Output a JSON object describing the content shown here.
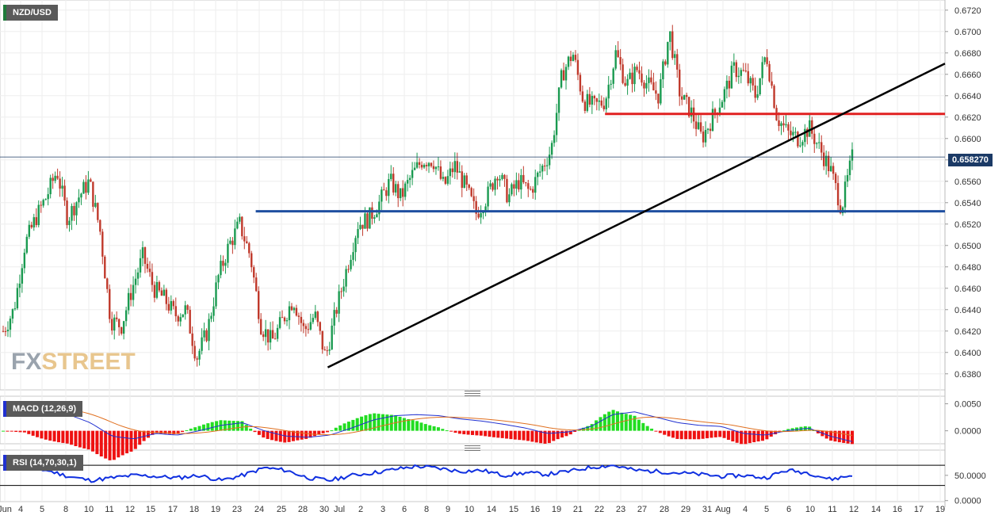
{
  "chart_data": [
    {
      "type": "candlestick",
      "symbol": "NZD/USD",
      "last_price_label": "0.658270",
      "last_price": 0.65827,
      "ylim": [
        0.6365,
        0.6728
      ],
      "yticks": [
        "0.6380",
        "0.6400",
        "0.6420",
        "0.6440",
        "0.6460",
        "0.6480",
        "0.6500",
        "0.6520",
        "0.6540",
        "0.6560",
        "0.6580",
        "0.6600",
        "0.6620",
        "0.6640",
        "0.6660",
        "0.6680",
        "0.6700",
        "0.6720"
      ],
      "xticks": [
        "Jun",
        "4",
        "5",
        "8",
        "10",
        "11",
        "12",
        "15",
        "17",
        "18",
        "19",
        "23",
        "24",
        "25",
        "28",
        "30",
        "Jul",
        "2",
        "3",
        "6",
        "8",
        "9",
        "10",
        "14",
        "15",
        "16",
        "19",
        "21",
        "22",
        "23",
        "27",
        "28",
        "29",
        "31",
        "Aug",
        "4",
        "5",
        "6",
        "10",
        "11",
        "12",
        "14",
        "16",
        "17",
        "19"
      ],
      "watermark": {
        "part1": "FX",
        "part2": "STREET"
      },
      "colors": {
        "up": "#1a9a50",
        "down": "#c0392b",
        "support": "#1f4fa0",
        "resistance": "#e02020",
        "trendline": "#000000"
      },
      "levels": [
        {
          "role": "support",
          "value": 0.6532,
          "from_day": 23.5,
          "to_day": 999
        },
        {
          "role": "resistance",
          "value": 0.6623,
          "from_day": 56,
          "to_day": 999
        }
      ],
      "trendline": {
        "start": [
          30.2,
          0.6386
        ],
        "end": [
          999,
          0.667
        ]
      },
      "anchors": [
        [
          0,
          0.642
        ],
        [
          1,
          0.644
        ],
        [
          2,
          0.65
        ],
        [
          3,
          0.6525
        ],
        [
          4,
          0.6545
        ],
        [
          5,
          0.657
        ],
        [
          6,
          0.6525
        ],
        [
          7,
          0.6545
        ],
        [
          8,
          0.656
        ],
        [
          9,
          0.6515
        ],
        [
          10,
          0.643
        ],
        [
          11,
          0.6425
        ],
        [
          12,
          0.646
        ],
        [
          13,
          0.649
        ],
        [
          14,
          0.646
        ],
        [
          15,
          0.645
        ],
        [
          16,
          0.6435
        ],
        [
          17,
          0.644
        ],
        [
          18,
          0.6395
        ],
        [
          19,
          0.642
        ],
        [
          20,
          0.647
        ],
        [
          21,
          0.65
        ],
        [
          22,
          0.652
        ],
        [
          23,
          0.649
        ],
        [
          24,
          0.6425
        ],
        [
          25,
          0.641
        ],
        [
          26,
          0.643
        ],
        [
          27,
          0.645
        ],
        [
          28,
          0.642
        ],
        [
          29,
          0.6435
        ],
        [
          30,
          0.6395
        ],
        [
          31,
          0.644
        ],
        [
          32,
          0.648
        ],
        [
          33,
          0.652
        ],
        [
          34,
          0.6525
        ],
        [
          35,
          0.654
        ],
        [
          36,
          0.656
        ],
        [
          37,
          0.6545
        ],
        [
          38,
          0.6565
        ],
        [
          39,
          0.658
        ],
        [
          40,
          0.658
        ],
        [
          41,
          0.6555
        ],
        [
          42,
          0.6575
        ],
        [
          43,
          0.6555
        ],
        [
          44,
          0.653
        ],
        [
          45,
          0.6545
        ],
        [
          46,
          0.657
        ],
        [
          47,
          0.6545
        ],
        [
          48,
          0.656
        ],
        [
          49,
          0.655
        ],
        [
          50,
          0.657
        ],
        [
          51,
          0.659
        ],
        [
          52,
          0.666
        ],
        [
          53,
          0.668
        ],
        [
          54,
          0.6635
        ],
        [
          55,
          0.663
        ],
        [
          56,
          0.6635
        ],
        [
          57,
          0.668
        ],
        [
          58,
          0.665
        ],
        [
          59,
          0.6665
        ],
        [
          60,
          0.665
        ],
        [
          61,
          0.664
        ],
        [
          62,
          0.67
        ],
        [
          63,
          0.664
        ],
        [
          64,
          0.6625
        ],
        [
          65,
          0.66
        ],
        [
          66,
          0.662
        ],
        [
          67,
          0.664
        ],
        [
          68,
          0.6665
        ],
        [
          69,
          0.666
        ],
        [
          70,
          0.664
        ],
        [
          71,
          0.668
        ],
        [
          72,
          0.662
        ],
        [
          73,
          0.6605
        ],
        [
          74,
          0.66
        ],
        [
          75,
          0.661
        ],
        [
          76,
          0.659
        ],
        [
          77,
          0.657
        ],
        [
          78,
          0.6535
        ],
        [
          79,
          0.6582
        ]
      ],
      "day_tick_index": {
        "Jun": 0,
        "4": 1,
        "5": 2,
        "8": 3,
        "10": 4,
        "11": 5,
        "12": 6,
        "15": 7,
        "17": 8,
        "18": 9,
        "19": 10,
        "23": 11,
        "24": 12,
        "25": 13,
        "28": 14,
        "30": 15,
        "Jul": 16,
        "2": 17,
        "3": 18,
        "6": 19,
        "8b": 20,
        "9": 21,
        "10b": 22,
        "14": 23,
        "15b": 24,
        "16": 25,
        "19b": 26,
        "21": 27,
        "22": 28,
        "23b": 29,
        "27": 30,
        "28b": 31,
        "29": 32,
        "31": 33,
        "Aug": 34,
        "4b": 35,
        "5b": 36,
        "6b": 37,
        "10c": 38,
        "11b": 39,
        "12b": 40,
        "14b": 41,
        "16b": 42,
        "17b": 43,
        "19c": 44
      }
    },
    {
      "type": "macd",
      "label": "MACD (12,26,9)",
      "yticks": [
        "0.0050",
        "0.0000"
      ],
      "ylim": [
        -0.0024,
        0.0064
      ],
      "colors": {
        "macd": "#2030d0",
        "signal": "#e07020",
        "hist_up": "#22dd22",
        "hist_down": "#ee1111"
      }
    },
    {
      "type": "rsi",
      "label": "RSI (14,70,30,1)",
      "yticks": [
        "50.0000",
        "0.0000"
      ],
      "ylim": [
        -2,
        100
      ],
      "levels": [
        70,
        30
      ],
      "colors": {
        "rsi": "#1030e0"
      }
    }
  ]
}
